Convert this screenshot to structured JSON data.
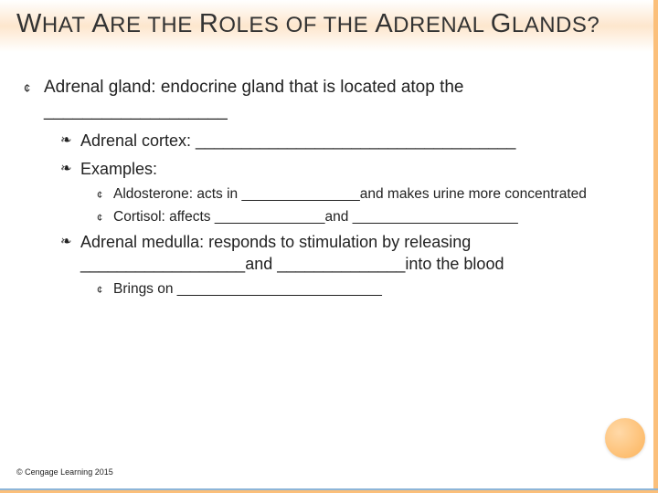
{
  "title": "WHAT ARE THE ROLES OF THE ADRENAL GLANDS?",
  "bullets": {
    "main": "Adrenal gland: endocrine gland that is located atop the ___________________",
    "cortex": "Adrenal cortex: ___________________________________",
    "examples_label": "Examples:",
    "aldosterone": "Aldosterone: acts in _______________and makes urine more concentrated",
    "cortisol": "Cortisol: affects ______________and _____________________",
    "medulla": "Adrenal medulla: responds to stimulation by releasing __________________and ______________into the blood",
    "brings": "Brings on __________________________"
  },
  "footer": "© Cengage Learning 2015",
  "style": {
    "title_color": "#333333",
    "title_fontsize": 24,
    "body_color": "#222222",
    "l1_fontsize": 19,
    "l2_fontsize": 18,
    "l3_fontsize": 15.5,
    "gradient_mid": "#fde6cd",
    "circle_light": "#ffd9a8",
    "circle_dark": "#fcb35a",
    "bottom_orange": "#fbbf7a",
    "bottom_blue": "#8db5d8",
    "background": "#ffffff",
    "bullet_l1": "¢",
    "bullet_l2": "❧",
    "bullet_l3": "¢"
  }
}
